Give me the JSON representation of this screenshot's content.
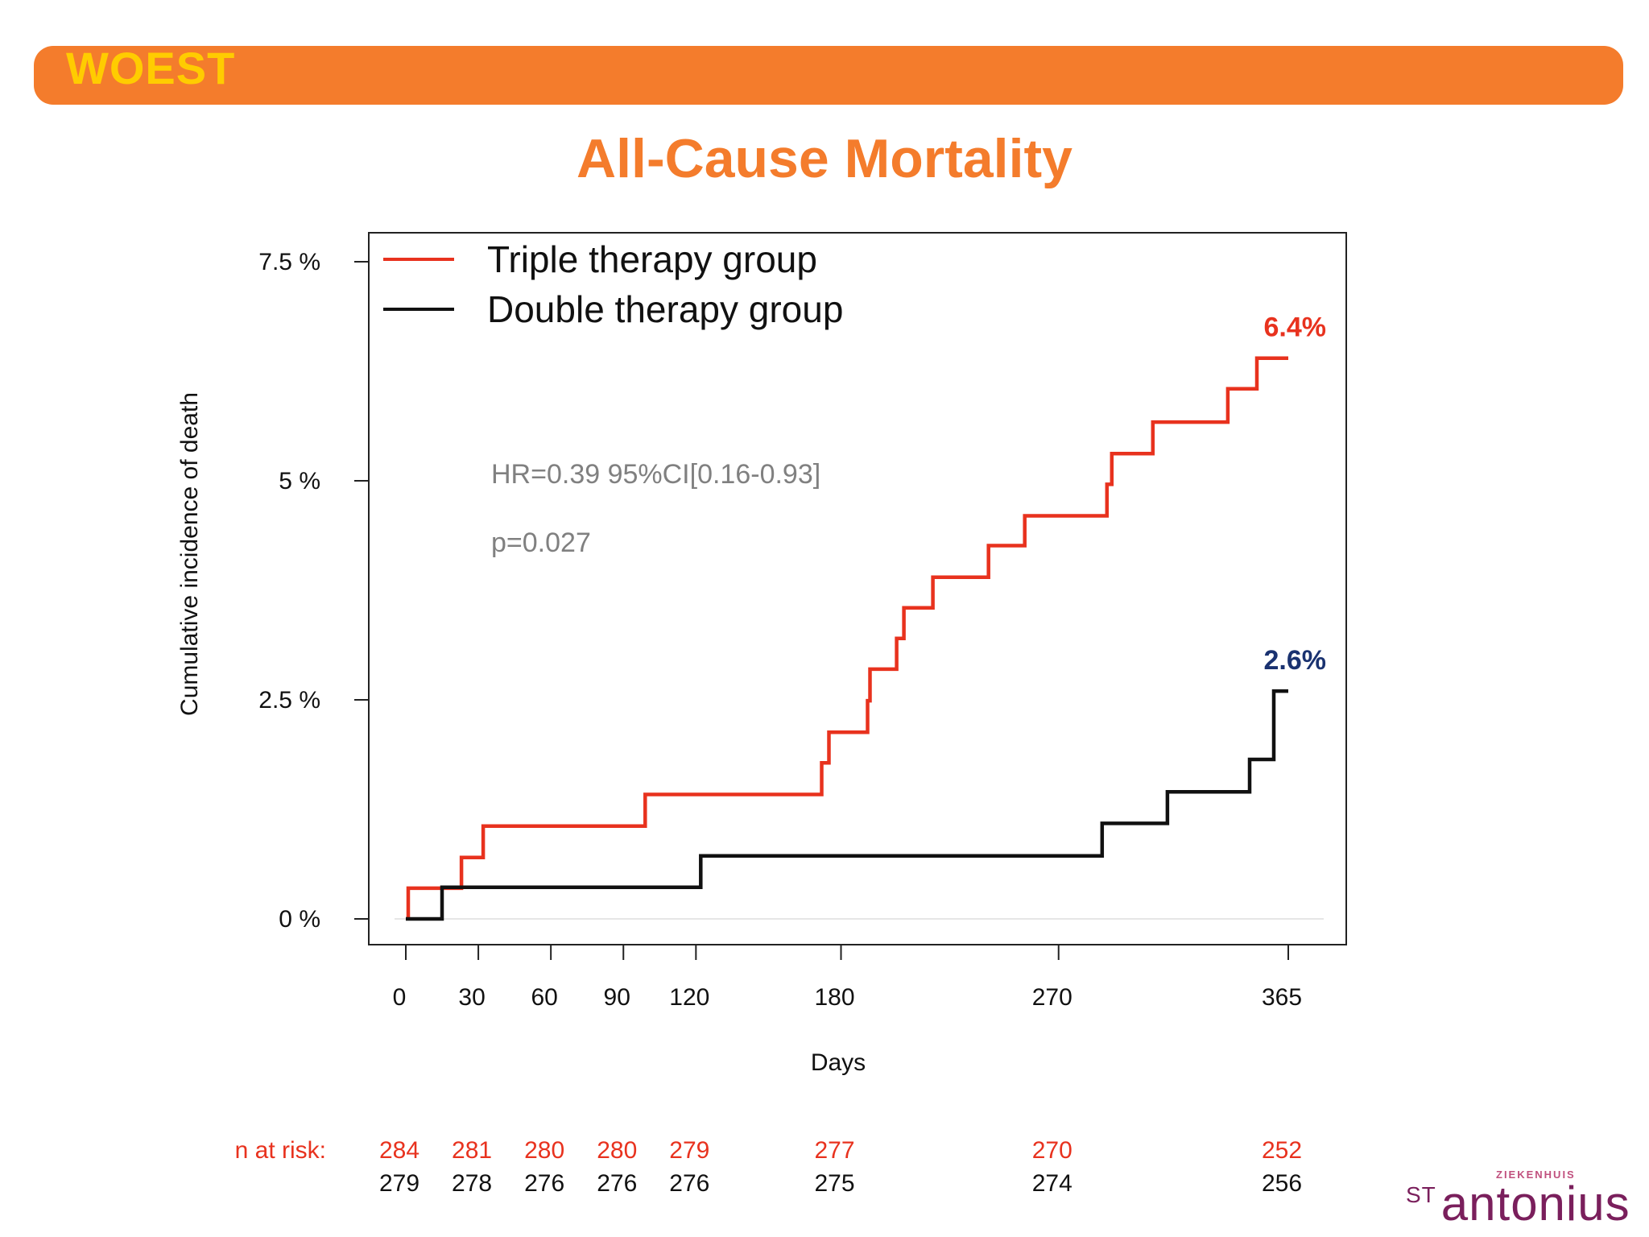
{
  "header": {
    "label": "WOEST",
    "bar_color": "#f47c2c",
    "label_color": "#ffcc00"
  },
  "slide_title": "All-Cause Mortality",
  "chart_data": {
    "type": "line",
    "step": true,
    "title": "",
    "xlabel": "Days",
    "ylabel": "Cumulative incidence of death",
    "xlim": [
      0,
      365
    ],
    "ylim": [
      0,
      7.5
    ],
    "x_ticks": [
      0,
      30,
      60,
      90,
      120,
      180,
      270,
      365
    ],
    "y_ticks": [
      {
        "value": 0,
        "label": "0 %"
      },
      {
        "value": 2.5,
        "label": "2.5 %"
      },
      {
        "value": 5,
        "label": "5 %"
      },
      {
        "value": 7.5,
        "label": "7.5 %"
      }
    ],
    "legend_placement": "top-left",
    "series": [
      {
        "name": "Triple therapy group",
        "color": "#e8321e",
        "end_label": "6.4%",
        "end_label_color": "#e8321e",
        "points": [
          [
            1,
            0
          ],
          [
            1,
            0.35
          ],
          [
            23,
            0.35
          ],
          [
            23,
            0.7
          ],
          [
            32,
            0.7
          ],
          [
            32,
            1.06
          ],
          [
            99,
            1.06
          ],
          [
            99,
            1.42
          ],
          [
            172,
            1.42
          ],
          [
            172,
            1.78
          ],
          [
            175,
            1.78
          ],
          [
            175,
            2.13
          ],
          [
            191,
            2.13
          ],
          [
            191,
            2.49
          ],
          [
            192,
            2.49
          ],
          [
            192,
            2.85
          ],
          [
            203,
            2.85
          ],
          [
            203,
            3.2
          ],
          [
            206,
            3.2
          ],
          [
            206,
            3.55
          ],
          [
            218,
            3.55
          ],
          [
            218,
            3.9
          ],
          [
            241,
            3.9
          ],
          [
            241,
            4.26
          ],
          [
            256,
            4.26
          ],
          [
            256,
            4.6
          ],
          [
            290,
            4.6
          ],
          [
            290,
            4.96
          ],
          [
            292,
            4.96
          ],
          [
            292,
            5.31
          ],
          [
            309,
            5.31
          ],
          [
            309,
            5.67
          ],
          [
            340,
            5.67
          ],
          [
            340,
            6.05
          ],
          [
            352,
            6.05
          ],
          [
            352,
            6.4
          ],
          [
            365,
            6.4
          ]
        ]
      },
      {
        "name": "Double therapy group",
        "color": "#111111",
        "end_label": "2.6%",
        "end_label_color": "#1a3270",
        "points": [
          [
            0,
            0
          ],
          [
            15,
            0
          ],
          [
            15,
            0.36
          ],
          [
            122,
            0.36
          ],
          [
            122,
            0.72
          ],
          [
            288,
            0.72
          ],
          [
            288,
            1.09
          ],
          [
            315,
            1.09
          ],
          [
            315,
            1.45
          ],
          [
            349,
            1.45
          ],
          [
            349,
            1.82
          ],
          [
            359,
            1.82
          ],
          [
            359,
            2.6
          ],
          [
            365,
            2.6
          ]
        ]
      }
    ],
    "annotations": [
      "HR=0.39  95%CI[0.16-0.93]",
      "p=0.027"
    ],
    "risk_table": {
      "label": "n at risk:",
      "label_color": "#e8321e",
      "rows": [
        {
          "color": "#e8321e",
          "values": [
            "284",
            "281",
            "280",
            "280",
            "279",
            "277",
            "270",
            "252"
          ]
        },
        {
          "color": "#111111",
          "values": [
            "279",
            "278",
            "276",
            "276",
            "276",
            "275",
            "274",
            "256"
          ]
        }
      ]
    }
  },
  "logo": {
    "small_text": "ZIEKENHUIS",
    "prefix": "ST",
    "name": "antonius"
  }
}
